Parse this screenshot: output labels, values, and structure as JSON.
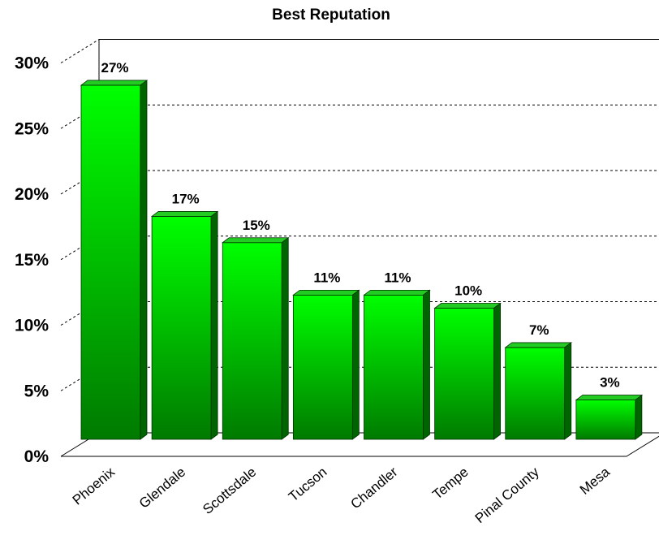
{
  "chart_data": {
    "type": "bar",
    "title": "Best Reputation",
    "categories": [
      "Phoenix",
      "Glendale",
      "Scottsdale",
      "Tucson",
      "Chandler",
      "Tempe",
      "Pinal County",
      "Mesa"
    ],
    "values": [
      27,
      17,
      15,
      11,
      11,
      10,
      7,
      3
    ],
    "data_labels": [
      "27%",
      "17%",
      "15%",
      "11%",
      "11%",
      "10%",
      "7%",
      "3%"
    ],
    "ylim": [
      0,
      30
    ],
    "yticks": [
      0,
      5,
      10,
      15,
      20,
      25,
      30
    ],
    "ytick_labels": [
      "0%",
      "5%",
      "10%",
      "15%",
      "20%",
      "25%",
      "30%"
    ],
    "xlabel": "",
    "ylabel": "",
    "grid": true,
    "three_d": true,
    "colors": {
      "bar_light": "#00ff00",
      "bar_dark": "#007a00",
      "bar_side": "#006400",
      "bar_top": "#22cc22"
    }
  }
}
